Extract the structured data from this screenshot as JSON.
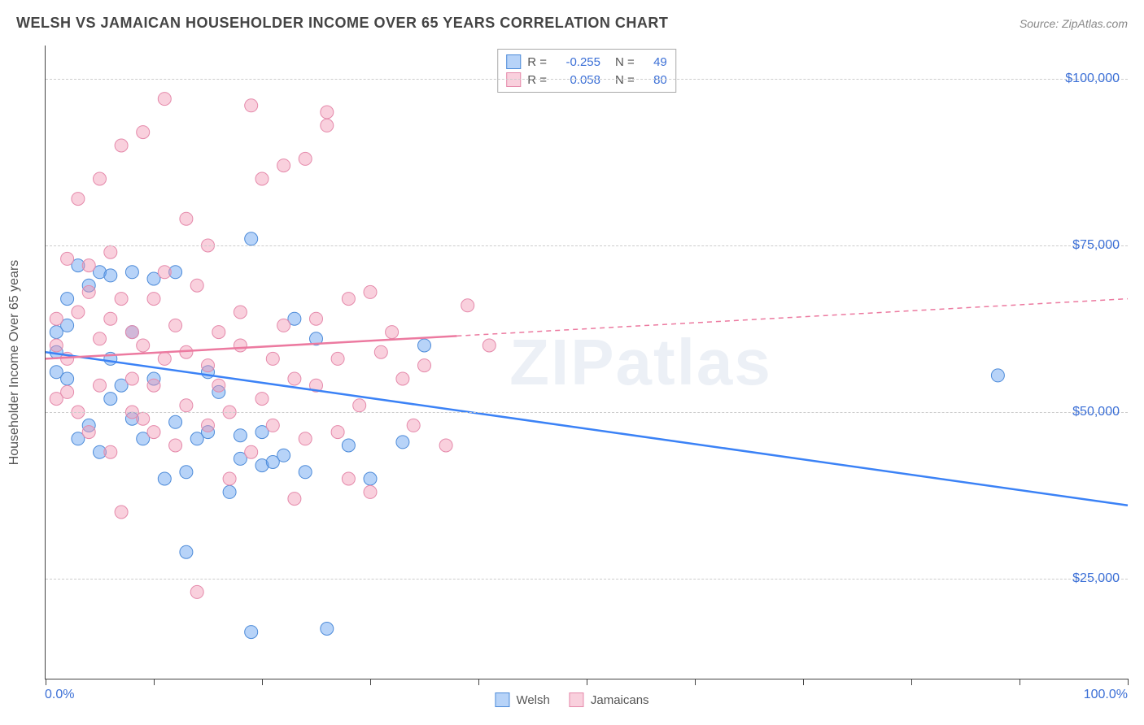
{
  "title": "WELSH VS JAMAICAN HOUSEHOLDER INCOME OVER 65 YEARS CORRELATION CHART",
  "source": "Source: ZipAtlas.com",
  "ylabel": "Householder Income Over 65 years",
  "watermark": "ZIPatlas",
  "chart": {
    "type": "scatter-with-regression",
    "background_color": "#ffffff",
    "grid_color": "#cccccc",
    "xlim": [
      0,
      100
    ],
    "ylim": [
      10000,
      105000
    ],
    "ytick_positions": [
      25000,
      50000,
      75000,
      100000
    ],
    "ytick_labels": [
      "$25,000",
      "$50,000",
      "$75,000",
      "$100,000"
    ],
    "xtick_positions": [
      0,
      10,
      20,
      30,
      40,
      50,
      60,
      70,
      80,
      90,
      100
    ],
    "xaxis_left_label": "0.0%",
    "xaxis_right_label": "100.0%",
    "marker_radius": 8,
    "marker_opacity": 0.45,
    "line_width": 2.5,
    "series": [
      {
        "name": "Welsh",
        "color": "#3b82f6",
        "fill": "rgba(96,157,240,0.45)",
        "stroke": "#4d8bd9",
        "R": "-0.255",
        "N": "49",
        "regression": {
          "x1": 0,
          "y1": 59000,
          "x2": 100,
          "y2": 36000,
          "dashed_from_x": null
        },
        "points": [
          [
            1,
            59000
          ],
          [
            1,
            62000
          ],
          [
            1,
            56000
          ],
          [
            2,
            55000
          ],
          [
            2,
            63000
          ],
          [
            2,
            67000
          ],
          [
            3,
            46000
          ],
          [
            3,
            72000
          ],
          [
            4,
            48000
          ],
          [
            4,
            69000
          ],
          [
            5,
            71000
          ],
          [
            5,
            44000
          ],
          [
            6,
            52000
          ],
          [
            6,
            58000
          ],
          [
            6,
            70500
          ],
          [
            7,
            54000
          ],
          [
            8,
            71000
          ],
          [
            8,
            49000
          ],
          [
            8,
            62000
          ],
          [
            9,
            46000
          ],
          [
            10,
            70000
          ],
          [
            10,
            55000
          ],
          [
            11,
            40000
          ],
          [
            12,
            48500
          ],
          [
            12,
            71000
          ],
          [
            13,
            41000
          ],
          [
            13,
            29000
          ],
          [
            14,
            46000
          ],
          [
            15,
            47000
          ],
          [
            15,
            56000
          ],
          [
            16,
            53000
          ],
          [
            17,
            38000
          ],
          [
            18,
            43000
          ],
          [
            18,
            46500
          ],
          [
            19,
            17000
          ],
          [
            19,
            76000
          ],
          [
            20,
            42000
          ],
          [
            20,
            47000
          ],
          [
            21,
            42500
          ],
          [
            22,
            43500
          ],
          [
            23,
            64000
          ],
          [
            24,
            41000
          ],
          [
            25,
            61000
          ],
          [
            26,
            17500
          ],
          [
            28,
            45000
          ],
          [
            30,
            40000
          ],
          [
            33,
            45500
          ],
          [
            35,
            60000
          ],
          [
            88,
            55500
          ]
        ]
      },
      {
        "name": "Jamaicans",
        "color": "#ec7aa0",
        "fill": "rgba(242,150,180,0.45)",
        "stroke": "#e58aab",
        "R": "0.058",
        "N": "80",
        "regression": {
          "x1": 0,
          "y1": 58000,
          "x2": 100,
          "y2": 67000,
          "dashed_from_x": 38
        },
        "points": [
          [
            1,
            60000
          ],
          [
            1,
            64000
          ],
          [
            1,
            52000
          ],
          [
            2,
            58000
          ],
          [
            2,
            73000
          ],
          [
            2,
            53000
          ],
          [
            3,
            50000
          ],
          [
            3,
            82000
          ],
          [
            3,
            65000
          ],
          [
            4,
            68000
          ],
          [
            4,
            72000
          ],
          [
            4,
            47000
          ],
          [
            5,
            54000
          ],
          [
            5,
            61000
          ],
          [
            5,
            85000
          ],
          [
            6,
            64000
          ],
          [
            6,
            74000
          ],
          [
            6,
            44000
          ],
          [
            7,
            67000
          ],
          [
            7,
            90000
          ],
          [
            7,
            35000
          ],
          [
            8,
            62000
          ],
          [
            8,
            50000
          ],
          [
            8,
            55000
          ],
          [
            9,
            49000
          ],
          [
            9,
            60000
          ],
          [
            9,
            92000
          ],
          [
            10,
            67000
          ],
          [
            10,
            54000
          ],
          [
            10,
            47000
          ],
          [
            11,
            58000
          ],
          [
            11,
            71000
          ],
          [
            11,
            97000
          ],
          [
            12,
            63000
          ],
          [
            12,
            45000
          ],
          [
            13,
            59000
          ],
          [
            13,
            51000
          ],
          [
            13,
            79000
          ],
          [
            14,
            23000
          ],
          [
            14,
            69000
          ],
          [
            15,
            48000
          ],
          [
            15,
            57000
          ],
          [
            15,
            75000
          ],
          [
            16,
            54000
          ],
          [
            16,
            62000
          ],
          [
            17,
            40000
          ],
          [
            17,
            50000
          ],
          [
            18,
            60000
          ],
          [
            18,
            65000
          ],
          [
            19,
            44000
          ],
          [
            19,
            96000
          ],
          [
            20,
            85000
          ],
          [
            20,
            52000
          ],
          [
            21,
            58000
          ],
          [
            21,
            48000
          ],
          [
            22,
            87000
          ],
          [
            22,
            63000
          ],
          [
            23,
            37000
          ],
          [
            23,
            55000
          ],
          [
            24,
            46000
          ],
          [
            24,
            88000
          ],
          [
            25,
            64000
          ],
          [
            25,
            54000
          ],
          [
            26,
            93000
          ],
          [
            26,
            95000
          ],
          [
            27,
            58000
          ],
          [
            27,
            47000
          ],
          [
            28,
            67000
          ],
          [
            28,
            40000
          ],
          [
            29,
            51000
          ],
          [
            30,
            68000
          ],
          [
            30,
            38000
          ],
          [
            31,
            59000
          ],
          [
            32,
            62000
          ],
          [
            33,
            55000
          ],
          [
            34,
            48000
          ],
          [
            35,
            57000
          ],
          [
            37,
            45000
          ],
          [
            39,
            66000
          ],
          [
            41,
            60000
          ]
        ]
      }
    ]
  },
  "bottom_legend": [
    {
      "label": "Welsh",
      "fill": "rgba(96,157,240,0.45)",
      "stroke": "#4d8bd9"
    },
    {
      "label": "Jamaicans",
      "fill": "rgba(242,150,180,0.45)",
      "stroke": "#e58aab"
    }
  ]
}
